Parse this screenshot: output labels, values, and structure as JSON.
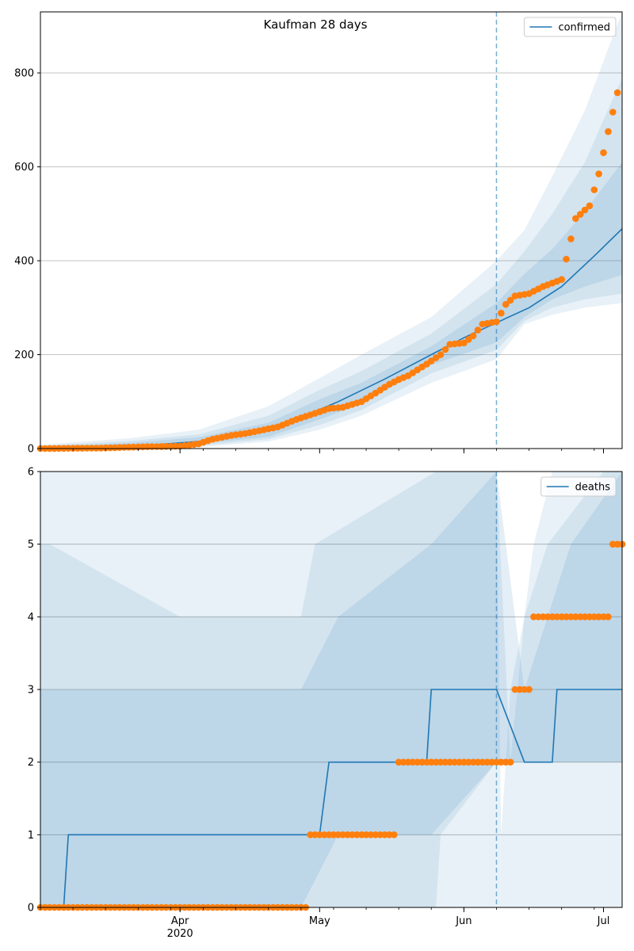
{
  "colors": {
    "model": "#1f77b4",
    "observed": "#ff7f0e",
    "band": "#1f77b4",
    "grid": "#b0b0b0",
    "axis": "#000000"
  },
  "chart_data": [
    {
      "type": "line",
      "panel": "top",
      "title": "Kaufman 28 days",
      "legend": {
        "label": "confirmed",
        "placement": "top-right"
      },
      "x_range": [
        "2020-03-02",
        "2020-07-05"
      ],
      "y_range": [
        0,
        930
      ],
      "y_ticks": [
        0,
        200,
        400,
        600,
        800
      ],
      "grid": "y",
      "forecast_start": "2020-06-08",
      "bands": [
        {
          "x": [
            "2020-03-02",
            "2020-03-21",
            "2020-04-05",
            "2020-04-20",
            "2020-05-01",
            "2020-05-10",
            "2020-05-25",
            "2020-06-08",
            "2020-06-14",
            "2020-06-20",
            "2020-06-27",
            "2020-07-05"
          ],
          "lower": [
            0,
            1,
            3,
            15,
            40,
            70,
            140,
            190,
            265,
            285,
            300,
            310
          ],
          "upper": [
            8,
            22,
            40,
            90,
            150,
            200,
            280,
            400,
            465,
            580,
            720,
            930
          ]
        },
        {
          "x": [
            "2020-03-02",
            "2020-03-21",
            "2020-04-05",
            "2020-04-20",
            "2020-05-01",
            "2020-05-10",
            "2020-05-25",
            "2020-06-08",
            "2020-06-14",
            "2020-06-20",
            "2020-06-27",
            "2020-07-05"
          ],
          "lower": [
            0,
            2,
            6,
            20,
            50,
            82,
            160,
            210,
            272,
            300,
            318,
            330
          ],
          "upper": [
            6,
            16,
            30,
            70,
            125,
            165,
            245,
            350,
            420,
            500,
            610,
            790
          ]
        },
        {
          "x": [
            "2020-03-02",
            "2020-03-21",
            "2020-04-05",
            "2020-04-20",
            "2020-05-01",
            "2020-05-10",
            "2020-05-25",
            "2020-06-08",
            "2020-06-14",
            "2020-06-20",
            "2020-06-27",
            "2020-07-05"
          ],
          "lower": [
            0,
            3,
            10,
            25,
            62,
            95,
            178,
            226,
            280,
            318,
            345,
            370
          ],
          "upper": [
            4,
            12,
            24,
            55,
            105,
            140,
            218,
            310,
            372,
            425,
            505,
            610
          ]
        }
      ],
      "model": {
        "name": "confirmed",
        "x": [
          "2020-03-02",
          "2020-03-15",
          "2020-03-25",
          "2020-04-05",
          "2020-04-15",
          "2020-04-25",
          "2020-05-05",
          "2020-05-15",
          "2020-05-25",
          "2020-06-01",
          "2020-06-08",
          "2020-06-15",
          "2020-06-22",
          "2020-06-29",
          "2020-07-05"
        ],
        "y": [
          0,
          3,
          7,
          15,
          30,
          58,
          100,
          148,
          200,
          236,
          268,
          300,
          345,
          410,
          468
        ]
      },
      "observed": {
        "x": [
          "2020-03-02",
          "2020-03-15",
          "2020-03-25",
          "2020-04-01",
          "2020-04-05",
          "2020-04-08",
          "2020-04-12",
          "2020-04-15",
          "2020-04-19",
          "2020-04-22",
          "2020-04-26",
          "2020-04-30",
          "2020-05-03",
          "2020-05-06",
          "2020-05-10",
          "2020-05-13",
          "2020-05-16",
          "2020-05-18",
          "2020-05-20",
          "2020-05-24",
          "2020-05-27",
          "2020-05-29",
          "2020-06-01",
          "2020-06-03",
          "2020-06-05",
          "2020-06-08",
          "2020-06-10",
          "2020-06-12",
          "2020-06-15",
          "2020-06-18",
          "2020-06-22",
          "2020-06-25",
          "2020-06-28",
          "2020-06-30",
          "2020-07-02",
          "2020-07-04"
        ],
        "y": [
          0,
          1,
          4,
          5,
          10,
          20,
          28,
          32,
          40,
          46,
          62,
          75,
          85,
          88,
          100,
          118,
          137,
          147,
          155,
          180,
          200,
          222,
          225,
          240,
          265,
          270,
          307,
          325,
          330,
          345,
          360,
          490,
          517,
          585,
          675,
          758
        ]
      }
    },
    {
      "type": "line",
      "panel": "bottom",
      "legend": {
        "label": "deaths",
        "placement": "top-right"
      },
      "x_range": [
        "2020-03-02",
        "2020-07-05"
      ],
      "y_range": [
        0,
        6
      ],
      "y_ticks": [
        0,
        1,
        2,
        3,
        4,
        5,
        6
      ],
      "x_ticks": [
        {
          "date": "2020-04-01",
          "label": "Apr",
          "sublabel": "2020"
        },
        {
          "date": "2020-05-01",
          "label": "May"
        },
        {
          "date": "2020-06-01",
          "label": "Jun"
        },
        {
          "date": "2020-07-01",
          "label": "Jul"
        }
      ],
      "grid": "y",
      "forecast_start": "2020-06-08",
      "bands": [
        {
          "x": [
            "2020-03-02",
            "2020-03-04",
            "2020-03-06",
            "2020-04-27",
            "2020-04-29",
            "2020-05-23",
            "2020-05-25",
            "2020-06-08",
            "2020-06-09",
            "2020-06-11",
            "2020-06-14",
            "2020-06-16",
            "2020-06-20",
            "2020-07-01",
            "2020-07-05"
          ],
          "lower": [
            0,
            0,
            0,
            0,
            0,
            0,
            0,
            0,
            0,
            0,
            0,
            0,
            0,
            0,
            0
          ],
          "upper": [
            6,
            6,
            6,
            6,
            6,
            6,
            6,
            6,
            1,
            3,
            4,
            5,
            6,
            6,
            6
          ]
        },
        {
          "x": [
            "2020-03-02",
            "2020-03-04",
            "2020-04-01",
            "2020-04-27",
            "2020-04-30",
            "2020-05-26",
            "2020-05-27",
            "2020-06-08",
            "2020-06-11",
            "2020-06-14",
            "2020-06-19",
            "2020-07-01",
            "2020-07-05"
          ],
          "lower": [
            0,
            0,
            0,
            0,
            0,
            0,
            1,
            2,
            2,
            2,
            2,
            2,
            2
          ],
          "upper": [
            5,
            5,
            4,
            4,
            5,
            6,
            6,
            6,
            2,
            4,
            5,
            6,
            6
          ]
        },
        {
          "x": [
            "2020-03-02",
            "2020-03-08",
            "2020-04-27",
            "2020-05-05",
            "2020-05-25",
            "2020-06-08",
            "2020-06-14",
            "2020-06-24",
            "2020-07-05"
          ],
          "lower": [
            0,
            0,
            0,
            1,
            1,
            2,
            2,
            2,
            2
          ],
          "upper": [
            3,
            3,
            3,
            4,
            5,
            6,
            3,
            5,
            6
          ]
        }
      ],
      "model": {
        "name": "deaths",
        "x": [
          "2020-03-02",
          "2020-03-07",
          "2020-03-08",
          "2020-05-01",
          "2020-05-03",
          "2020-05-24",
          "2020-05-25",
          "2020-06-08",
          "2020-06-14",
          "2020-06-20",
          "2020-06-21",
          "2020-07-05"
        ],
        "y": [
          0,
          0,
          1,
          1,
          2,
          2,
          3,
          3,
          2,
          2,
          3,
          3
        ]
      },
      "observed": {
        "x": [
          "2020-03-02",
          "2020-03-20",
          "2020-04-10",
          "2020-04-28",
          "2020-04-29",
          "2020-05-05",
          "2020-05-12",
          "2020-05-17",
          "2020-05-18",
          "2020-05-25",
          "2020-06-01",
          "2020-06-08",
          "2020-06-11",
          "2020-06-12",
          "2020-06-13",
          "2020-06-14",
          "2020-06-15",
          "2020-06-16",
          "2020-06-20",
          "2020-06-25",
          "2020-07-01",
          "2020-07-03",
          "2020-07-05"
        ],
        "y": [
          0,
          0,
          0,
          0,
          1,
          1,
          1,
          1,
          2,
          2,
          2,
          2,
          2,
          3,
          3,
          3,
          3,
          4,
          4,
          4,
          4,
          5,
          5
        ]
      }
    }
  ]
}
